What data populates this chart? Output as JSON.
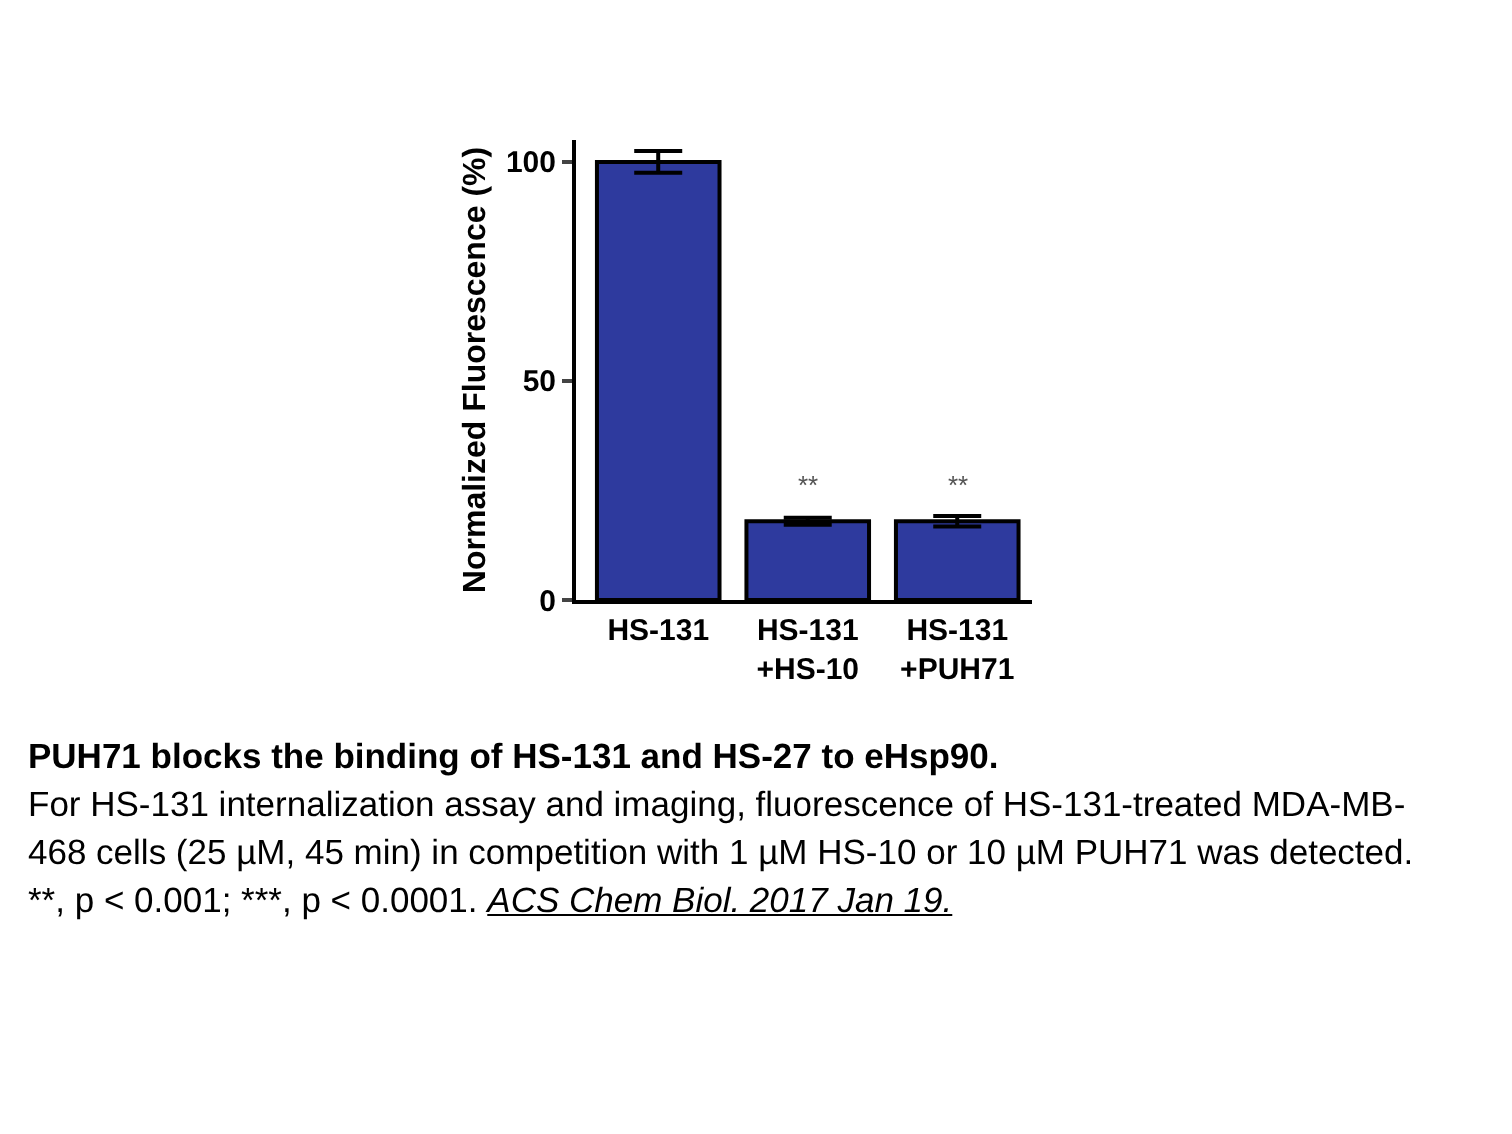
{
  "chart_data": {
    "type": "bar",
    "title": "PUH71 blocks the binding of HS-131 and HS-27 to eHsp90.",
    "subtitle": "For HS-131 internalization assay and imaging, fluorescence of HS-131-treated MDA-MB-468 cells (25 µM, 45 min) in competition with 1 µM HS-10 or 10 µM PUH71 was detected. **, p < 0.001; ***, p < 0.0001.",
    "ylabel": "Normalized Fluorescence (%)",
    "categories": [
      "HS-131",
      "HS-131\n+HS-10",
      "HS-131\n+PUH71"
    ],
    "values": [
      100,
      18,
      18
    ],
    "errors": [
      2.5,
      0.8,
      1.2
    ],
    "color": "#2e3a9e",
    "ylim": [
      0,
      105
    ],
    "yticks": [
      0,
      50,
      100
    ],
    "grid": false,
    "annotations": [
      {
        "text": "**",
        "x": "HS-131\n+HS-10",
        "y": 18
      },
      {
        "text": "**",
        "x": "HS-131\n+PUH71",
        "y": 18
      },
      "ACS Chem Biol. 2017 Jan 19."
    ]
  }
}
